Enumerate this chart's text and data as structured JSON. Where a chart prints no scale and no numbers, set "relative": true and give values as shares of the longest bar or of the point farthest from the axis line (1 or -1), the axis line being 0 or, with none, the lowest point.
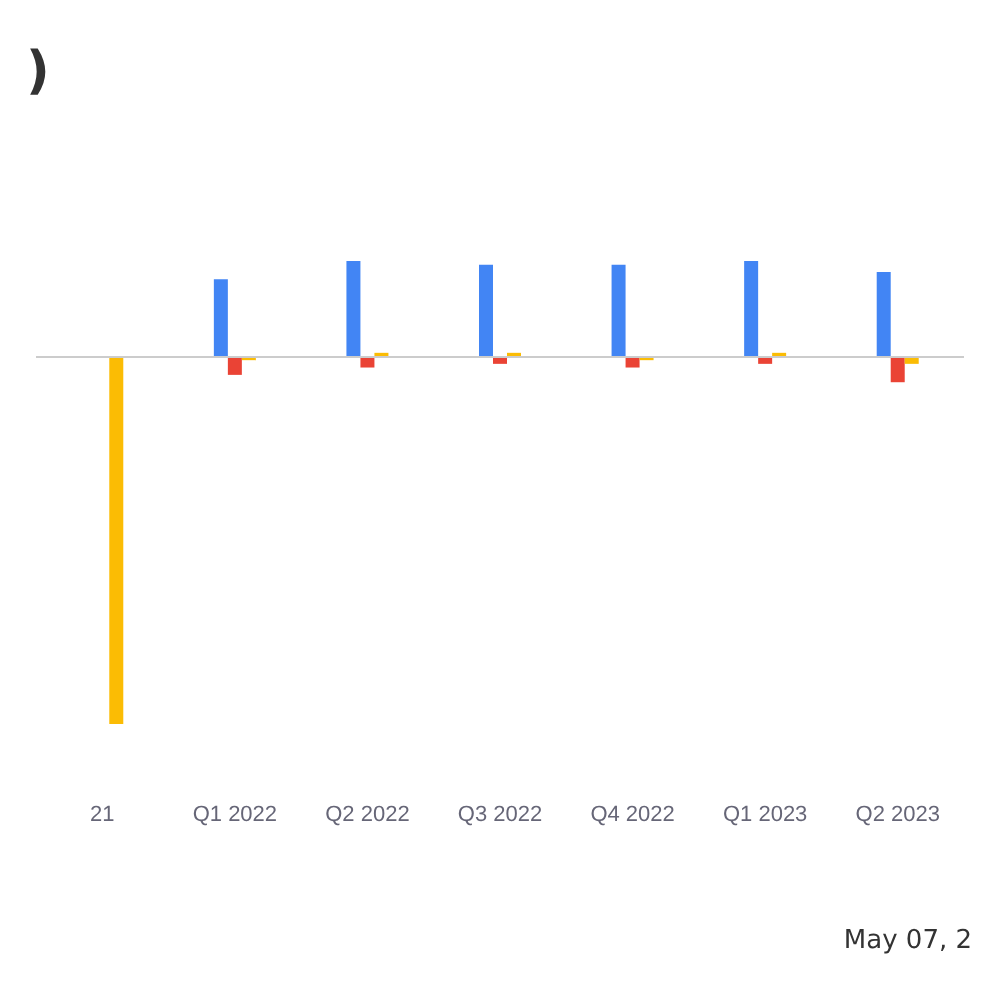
{
  "chart_data": {
    "type": "bar",
    "title": ")",
    "relative": true,
    "categories": [
      "21",
      "Q1 2022",
      "Q2 2022",
      "Q3 2022",
      "Q4 2022",
      "Q1 2023",
      "Q2 2023"
    ],
    "series": [
      {
        "color": "#4285f4",
        "values": [
          null,
          0.21,
          0.26,
          0.25,
          0.25,
          0.26,
          0.23
        ]
      },
      {
        "color": "#ea4335",
        "values": [
          null,
          -0.05,
          -0.03,
          -0.02,
          -0.03,
          -0.02,
          -0.07
        ]
      },
      {
        "color": "#fbbc04",
        "values": [
          -1,
          -0.01,
          0.01,
          0.01,
          -0.01,
          0.01,
          -0.02
        ]
      }
    ],
    "annotations": [
      "May 07, 2"
    ]
  }
}
